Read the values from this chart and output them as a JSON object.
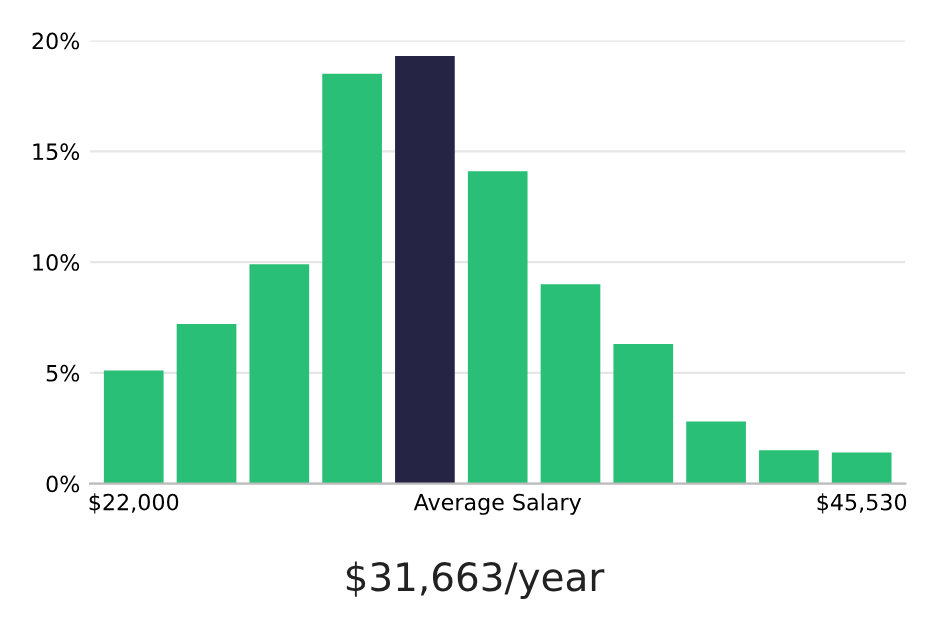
{
  "chart_data": {
    "type": "bar",
    "categories": [
      "$22,000",
      null,
      null,
      null,
      null,
      "Average Salary",
      null,
      null,
      null,
      null,
      "$45,530"
    ],
    "values": [
      5.1,
      7.2,
      9.9,
      18.5,
      19.3,
      14.1,
      9.0,
      6.3,
      2.8,
      1.5,
      1.4
    ],
    "colors": [
      "#2abf76",
      "#2abf76",
      "#2abf76",
      "#2abf76",
      "#262445",
      "#2abf76",
      "#2abf76",
      "#2abf76",
      "#2abf76",
      "#2abf76",
      "#2abf76"
    ],
    "ylim": [
      0,
      20
    ],
    "yticks": [
      {
        "value": 0,
        "label": "0%"
      },
      {
        "value": 5,
        "label": "5%"
      },
      {
        "value": 10,
        "label": "10%"
      },
      {
        "value": 15,
        "label": "15%"
      },
      {
        "value": 20,
        "label": "20%"
      }
    ],
    "grid": "y",
    "annotations": [
      "$31,663/year"
    ]
  }
}
